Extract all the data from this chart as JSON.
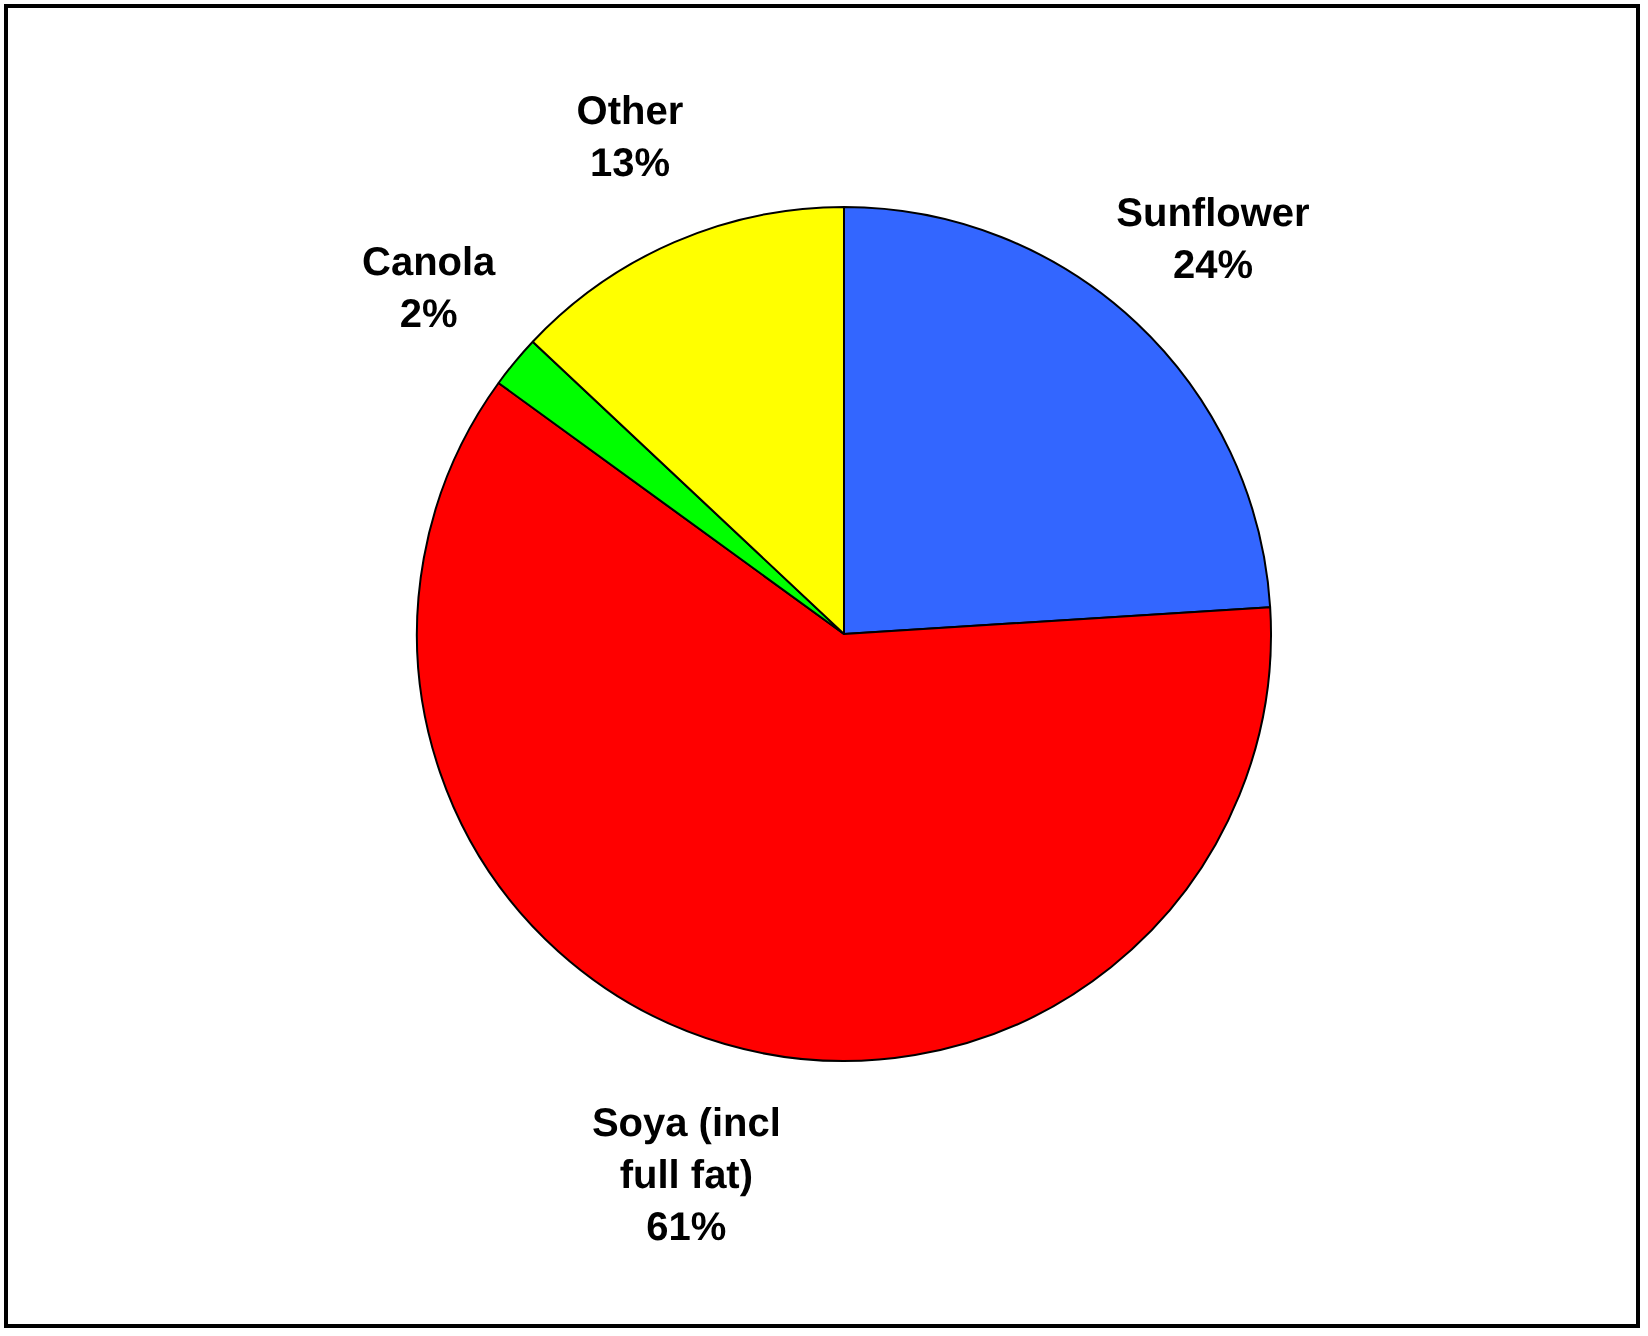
{
  "chart_data": {
    "type": "pie",
    "categories": [
      "Sunflower",
      "Soya (incl full fat)",
      "Canola",
      "Other"
    ],
    "values": [
      24,
      61,
      2,
      13
    ],
    "colors": [
      "#3366ff",
      "#ff0000",
      "#00ff00",
      "#ffff00"
    ],
    "value_labels": [
      "24%",
      "61%",
      "2%",
      "13%"
    ],
    "legend": false
  }
}
